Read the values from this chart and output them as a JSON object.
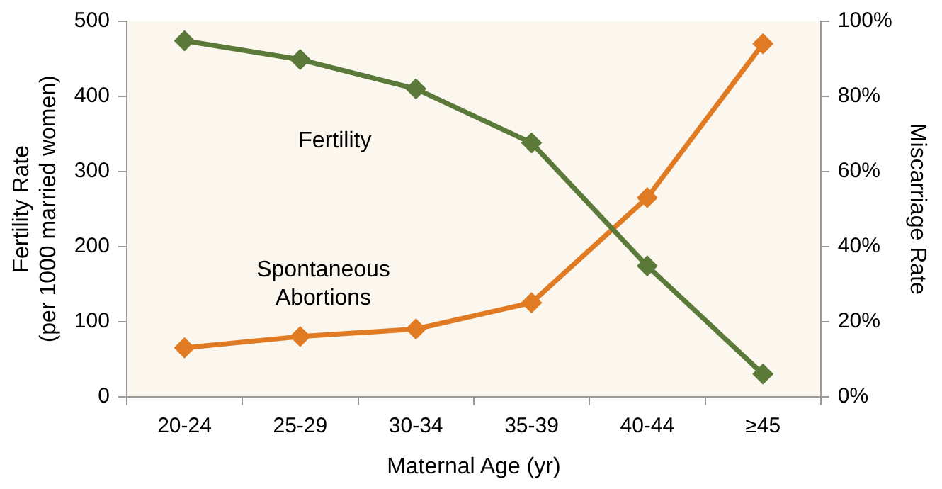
{
  "chart_data": {
    "type": "line",
    "xlabel": "Maternal Age (yr)",
    "ylabel": "Fertility Rate\n(per 1000 married women)",
    "y2label": "Miscarriage Rate",
    "categories": [
      "20-24",
      "25-29",
      "30-34",
      "35-39",
      "40-44",
      "≥45"
    ],
    "series": [
      {
        "name": "Fertility",
        "color": "#5b7a3a",
        "values": [
          474,
          449,
          410,
          338,
          174,
          30
        ]
      },
      {
        "name": "Spontaneous Abortions",
        "color": "#e07b24",
        "axis": "y2",
        "values": [
          13,
          16,
          18,
          25,
          53,
          94
        ]
      }
    ],
    "ylim": [
      0,
      500
    ],
    "yticks": [
      0,
      100,
      200,
      300,
      400,
      500
    ],
    "y2lim": [
      0,
      100
    ],
    "y2ticks": [
      {
        "value": 0,
        "label": "0%"
      },
      {
        "value": 20,
        "label": "20%"
      },
      {
        "value": 40,
        "label": "40%"
      },
      {
        "value": 60,
        "label": "60%"
      },
      {
        "value": 80,
        "label": "80%"
      },
      {
        "value": 100,
        "label": "100%"
      }
    ],
    "grid": false,
    "legend": false,
    "marker": "diamond",
    "line_style": "solid"
  }
}
